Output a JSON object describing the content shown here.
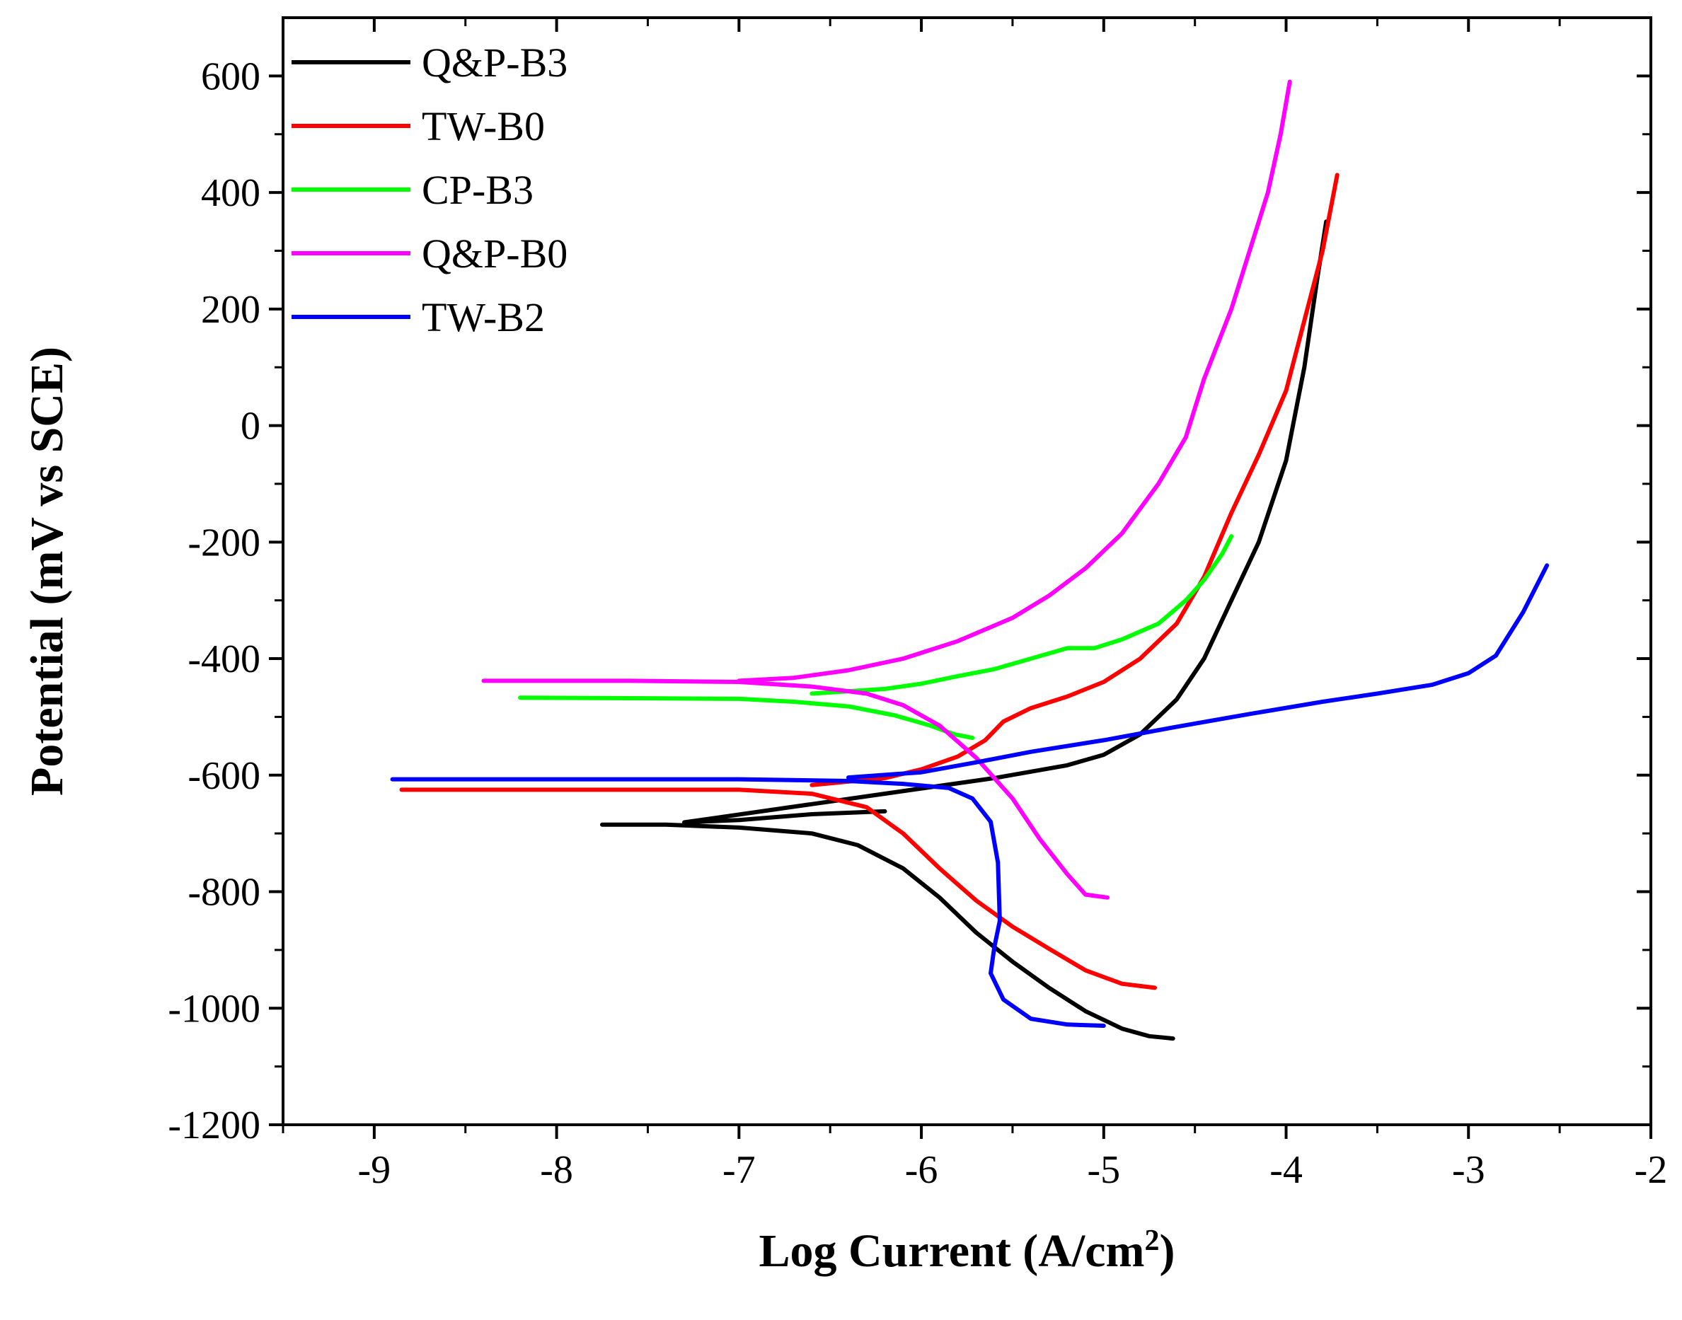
{
  "chart_data": {
    "type": "line",
    "title": "",
    "xlabel": "Log Current (A/cm2)",
    "xlabel_main": "Log Current (A/cm",
    "xlabel_sup": "2",
    "xlabel_close": ")",
    "ylabel": "Potential (mV vs SCE)",
    "xlim": [
      -9.5,
      -2
    ],
    "ylim": [
      -1200,
      700
    ],
    "xticks": [
      -9,
      -8,
      -7,
      -6,
      -5,
      -4,
      -3,
      -2
    ],
    "yticks": [
      600,
      400,
      200,
      0,
      -200,
      -400,
      -600,
      -800,
      -1000,
      -1200
    ],
    "legend_position": "top-left",
    "series": [
      {
        "name": "Q&P-B3",
        "color": "#000000",
        "points": [
          [
            -7.75,
            -685
          ],
          [
            -7.4,
            -685
          ],
          [
            -7.0,
            -690
          ],
          [
            -6.6,
            -700
          ],
          [
            -6.35,
            -720
          ],
          [
            -6.1,
            -760
          ],
          [
            -5.9,
            -810
          ],
          [
            -5.7,
            -870
          ],
          [
            -5.5,
            -920
          ],
          [
            -5.3,
            -965
          ],
          [
            -5.1,
            -1005
          ],
          [
            -4.9,
            -1035
          ],
          [
            -4.75,
            -1048
          ],
          [
            -4.62,
            -1052
          ],
          [
            -6.2,
            -662
          ],
          [
            -6.6,
            -667
          ],
          [
            -7.0,
            -677
          ],
          [
            -7.3,
            -681
          ],
          [
            -5.6,
            -605
          ],
          [
            -5.2,
            -583
          ],
          [
            -5.0,
            -565
          ],
          [
            -4.8,
            -530
          ],
          [
            -4.6,
            -470
          ],
          [
            -4.45,
            -400
          ],
          [
            -4.3,
            -300
          ],
          [
            -4.15,
            -200
          ],
          [
            -4.0,
            -60
          ],
          [
            -3.9,
            100
          ],
          [
            -3.83,
            250
          ],
          [
            -3.78,
            350
          ]
        ],
        "_note": "cathodic branch then anodic branch"
      },
      {
        "name": "TW-B0",
        "color": "#ff0000",
        "points": [
          [
            -8.85,
            -625
          ],
          [
            -8.0,
            -625
          ],
          [
            -7.0,
            -625
          ],
          [
            -6.6,
            -632
          ],
          [
            -6.3,
            -655
          ],
          [
            -6.1,
            -700
          ],
          [
            -5.9,
            -760
          ],
          [
            -5.7,
            -815
          ],
          [
            -5.5,
            -860
          ],
          [
            -5.3,
            -898
          ],
          [
            -5.1,
            -935
          ],
          [
            -4.9,
            -958
          ],
          [
            -4.72,
            -965
          ],
          [
            -6.6,
            -617
          ],
          [
            -6.2,
            -605
          ],
          [
            -6.0,
            -590
          ],
          [
            -5.8,
            -568
          ],
          [
            -5.65,
            -540
          ],
          [
            -5.55,
            -508
          ],
          [
            -5.4,
            -485
          ],
          [
            -5.2,
            -465
          ],
          [
            -5.0,
            -440
          ],
          [
            -4.8,
            -400
          ],
          [
            -4.6,
            -340
          ],
          [
            -4.45,
            -260
          ],
          [
            -4.3,
            -150
          ],
          [
            -4.15,
            -50
          ],
          [
            -4.0,
            60
          ],
          [
            -3.9,
            180
          ],
          [
            -3.8,
            300
          ],
          [
            -3.72,
            430
          ]
        ]
      },
      {
        "name": "CP-B3",
        "color": "#00ff00",
        "points": [
          [
            -8.2,
            -467
          ],
          [
            -7.5,
            -468
          ],
          [
            -7.0,
            -469
          ],
          [
            -6.7,
            -474
          ],
          [
            -6.4,
            -482
          ],
          [
            -6.15,
            -497
          ],
          [
            -5.95,
            -515
          ],
          [
            -5.82,
            -530
          ],
          [
            -5.72,
            -536
          ],
          [
            -6.6,
            -460
          ],
          [
            -6.2,
            -452
          ],
          [
            -6.0,
            -443
          ],
          [
            -5.8,
            -430
          ],
          [
            -5.6,
            -418
          ],
          [
            -5.4,
            -400
          ],
          [
            -5.2,
            -382
          ],
          [
            -5.05,
            -382
          ],
          [
            -4.9,
            -367
          ],
          [
            -4.7,
            -340
          ],
          [
            -4.55,
            -300
          ],
          [
            -4.45,
            -265
          ],
          [
            -4.35,
            -220
          ],
          [
            -4.3,
            -190
          ]
        ]
      },
      {
        "name": "Q&P-B0",
        "color": "#ff00ff",
        "points": [
          [
            -8.4,
            -438
          ],
          [
            -7.6,
            -438
          ],
          [
            -7.0,
            -440
          ],
          [
            -6.6,
            -448
          ],
          [
            -6.3,
            -460
          ],
          [
            -6.1,
            -480
          ],
          [
            -5.9,
            -515
          ],
          [
            -5.7,
            -570
          ],
          [
            -5.5,
            -640
          ],
          [
            -5.35,
            -710
          ],
          [
            -5.2,
            -770
          ],
          [
            -5.1,
            -805
          ],
          [
            -4.98,
            -810
          ],
          [
            -7.0,
            -438
          ],
          [
            -6.7,
            -433
          ],
          [
            -6.4,
            -420
          ],
          [
            -6.1,
            -400
          ],
          [
            -5.8,
            -370
          ],
          [
            -5.5,
            -330
          ],
          [
            -5.3,
            -292
          ],
          [
            -5.1,
            -245
          ],
          [
            -4.9,
            -185
          ],
          [
            -4.7,
            -100
          ],
          [
            -4.55,
            -20
          ],
          [
            -4.45,
            80
          ],
          [
            -4.3,
            200
          ],
          [
            -4.2,
            300
          ],
          [
            -4.1,
            400
          ],
          [
            -4.03,
            500
          ],
          [
            -3.98,
            590
          ]
        ]
      },
      {
        "name": "TW-B2",
        "color": "#0000ff",
        "points": [
          [
            -8.9,
            -607
          ],
          [
            -8.0,
            -607
          ],
          [
            -7.0,
            -607
          ],
          [
            -6.4,
            -610
          ],
          [
            -6.1,
            -615
          ],
          [
            -5.85,
            -622
          ],
          [
            -5.72,
            -640
          ],
          [
            -5.62,
            -680
          ],
          [
            -5.58,
            -750
          ],
          [
            -5.57,
            -850
          ],
          [
            -5.6,
            -895
          ],
          [
            -5.62,
            -940
          ],
          [
            -5.55,
            -985
          ],
          [
            -5.4,
            -1018
          ],
          [
            -5.2,
            -1028
          ],
          [
            -5.0,
            -1030
          ],
          [
            -6.4,
            -604
          ],
          [
            -6.0,
            -595
          ],
          [
            -5.7,
            -578
          ],
          [
            -5.4,
            -560
          ],
          [
            -5.0,
            -540
          ],
          [
            -4.6,
            -517
          ],
          [
            -4.2,
            -495
          ],
          [
            -3.8,
            -474
          ],
          [
            -3.5,
            -460
          ],
          [
            -3.2,
            -445
          ],
          [
            -3.0,
            -425
          ],
          [
            -2.85,
            -395
          ],
          [
            -2.7,
            -320
          ],
          [
            -2.57,
            -240
          ]
        ]
      }
    ]
  }
}
